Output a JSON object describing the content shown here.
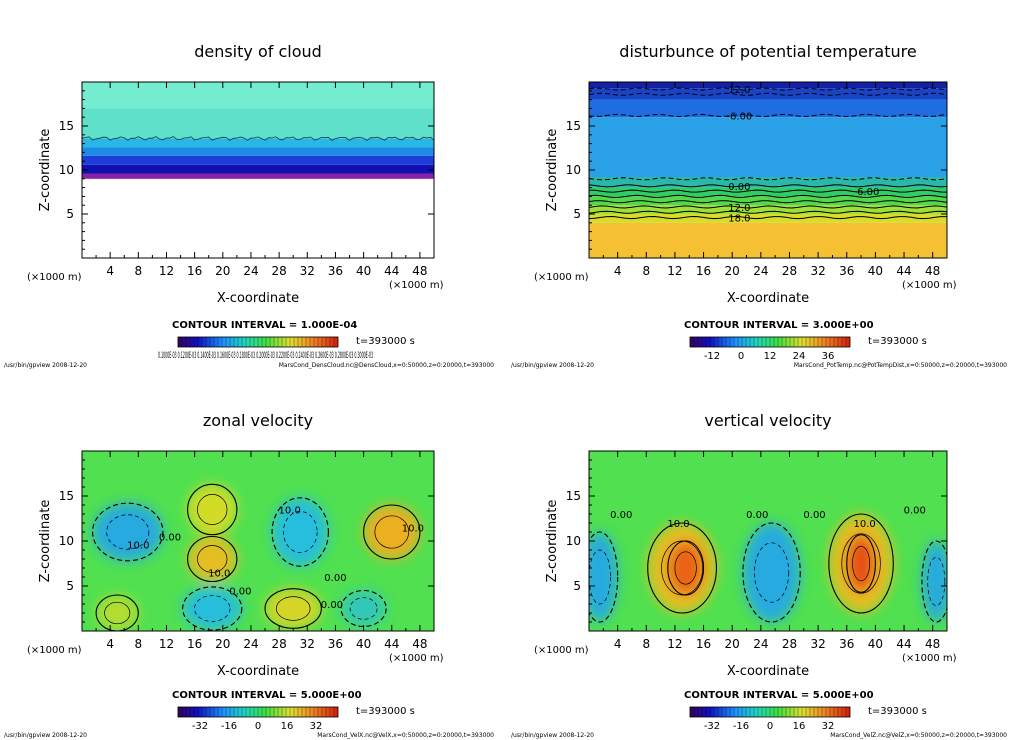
{
  "chart_data": [
    {
      "type": "heatmap",
      "title": "density of cloud",
      "xlabel": "X-coordinate",
      "ylabel": "Z-coordinate",
      "x_unit_label": "(×1000 m)",
      "y_unit_label": "(×1000 m)",
      "xlim": [
        0,
        50
      ],
      "ylim": [
        0,
        20
      ],
      "x_ticks": [
        "4",
        "8",
        "12",
        "16",
        "20",
        "24",
        "28",
        "32",
        "36",
        "40",
        "44",
        "48"
      ],
      "y_ticks": [
        "5",
        "10",
        "15"
      ],
      "contour_interval": "CONTOUR INTERVAL = 1.000E-04",
      "time": "t=393000 s",
      "colorbar_labels": [
        "0.1000E-03",
        "0.1200E-03",
        "0.1400E-03",
        "0.1600E-03",
        "0.1800E-03",
        "0.2000E-03",
        "0.2200E-03",
        "0.2400E-03",
        "0.2600E-03",
        "0.2800E-03",
        "0.3000E-03"
      ],
      "colorbar_label_text": "0.1000E-03 0.1200E-03 0.1400E-03 0.1600E-03 0.1800E-03 0.2000E-03 0.2200E-03 0.2400E-03 0.2600E-03 0.2800E-03 0.3000E-03",
      "footer_left": "/usr/bin/gpview   2008-12-20",
      "footer_right": "MarsCond_DensCloud.nc@DensCloud,x=0:50000,z=0:20000,t=393000",
      "layers": [
        {
          "z_from": 0,
          "z_to": 9,
          "color": "#ffffff"
        },
        {
          "z_from": 9,
          "z_to": 9.6,
          "color": "#8a1fa8"
        },
        {
          "z_from": 9.6,
          "z_to": 10.6,
          "color": "#1010b0"
        },
        {
          "z_from": 10.6,
          "z_to": 11.6,
          "color": "#1e3cd8"
        },
        {
          "z_from": 11.6,
          "z_to": 12.6,
          "color": "#1e8ae6"
        },
        {
          "z_from": 12.6,
          "z_to": 13.6,
          "color": "#28b8e6"
        },
        {
          "z_from": 13.6,
          "z_to": 17,
          "color": "#5fe0c8"
        },
        {
          "z_from": 17,
          "z_to": 20,
          "color": "#74ecd0"
        }
      ],
      "contours": [],
      "contour_labels": []
    },
    {
      "type": "heatmap",
      "title": "disturbunce of potential temperature",
      "xlabel": "X-coordinate",
      "ylabel": "Z-coordinate",
      "x_unit_label": "(×1000 m)",
      "y_unit_label": "(×1000 m)",
      "xlim": [
        0,
        50
      ],
      "ylim": [
        0,
        20
      ],
      "x_ticks": [
        "4",
        "8",
        "12",
        "16",
        "20",
        "24",
        "28",
        "32",
        "36",
        "40",
        "44",
        "48"
      ],
      "y_ticks": [
        "5",
        "10",
        "15"
      ],
      "contour_interval": "CONTOUR INTERVAL = 3.000E+00",
      "time": "t=393000 s",
      "colorbar_labels": [
        "-12",
        "0",
        "12",
        "24",
        "36"
      ],
      "colorbar_label_text": "",
      "footer_left": "/usr/bin/gpview   2008-12-20",
      "footer_right": "MarsCond_PotTemp.nc@PotTempDist,x=0:50000,z=0:20000,t=393000",
      "layers": [
        {
          "z_from": 0,
          "z_to": 4,
          "color": "#f5c032"
        },
        {
          "z_from": 4,
          "z_to": 5,
          "color": "#d8dc2a"
        },
        {
          "z_from": 5,
          "z_to": 6,
          "color": "#9ee03a"
        },
        {
          "z_from": 6,
          "z_to": 7,
          "color": "#52d84a"
        },
        {
          "z_from": 7,
          "z_to": 8,
          "color": "#30cc68"
        },
        {
          "z_from": 8,
          "z_to": 9.2,
          "color": "#2ab8a8"
        },
        {
          "z_from": 9.2,
          "z_to": 16,
          "color": "#2aa0e6"
        },
        {
          "z_from": 16,
          "z_to": 18,
          "color": "#1e6ee0"
        },
        {
          "z_from": 18,
          "z_to": 19.3,
          "color": "#1a44c8"
        },
        {
          "z_from": 19.3,
          "z_to": 20,
          "color": "#1420a8"
        }
      ],
      "contours": [
        {
          "z": 4.6,
          "dashed": false
        },
        {
          "z": 5.2,
          "dashed": false
        },
        {
          "z": 5.8,
          "dashed": false
        },
        {
          "z": 6.4,
          "dashed": false
        },
        {
          "z": 7.0,
          "dashed": false
        },
        {
          "z": 7.6,
          "dashed": false
        },
        {
          "z": 8.2,
          "dashed": false
        },
        {
          "z": 9.0,
          "dashed": true
        },
        {
          "z": 16.2,
          "dashed": true
        },
        {
          "z": 18.6,
          "dashed": true
        },
        {
          "z": 19.2,
          "dashed": true
        }
      ],
      "contour_labels": [
        {
          "text": "12.0",
          "x": 21,
          "z": 19.2
        },
        {
          "text": "-6.00",
          "x": 21,
          "z": 16.2
        },
        {
          "text": "0.00",
          "x": 21,
          "z": 8.2
        },
        {
          "text": "6.00",
          "x": 39,
          "z": 7.6
        },
        {
          "text": "12.0",
          "x": 21,
          "z": 5.8
        },
        {
          "text": "18.0",
          "x": 21,
          "z": 4.6
        }
      ]
    },
    {
      "type": "heatmap",
      "title": "zonal velocity",
      "xlabel": "X-coordinate",
      "ylabel": "Z-coordinate",
      "x_unit_label": "(×1000 m)",
      "y_unit_label": "(×1000 m)",
      "xlim": [
        0,
        50
      ],
      "ylim": [
        0,
        20
      ],
      "x_ticks": [
        "4",
        "8",
        "12",
        "16",
        "20",
        "24",
        "28",
        "32",
        "36",
        "40",
        "44",
        "48"
      ],
      "y_ticks": [
        "5",
        "10",
        "15"
      ],
      "contour_interval": "CONTOUR INTERVAL = 5.000E+00",
      "time": "t=393000 s",
      "colorbar_labels": [
        "-32",
        "-16",
        "0",
        "16",
        "32"
      ],
      "colorbar_label_text": "",
      "footer_left": "/usr/bin/gpview   2008-12-20",
      "footer_right": "MarsCond_VelX.nc@VelX,x=0:50000,z=0:20000,t=393000",
      "background": "#50e050",
      "blobs": [
        {
          "x": 6.5,
          "z": 11,
          "rx": 5.0,
          "rz": 3.2,
          "value": -10
        },
        {
          "x": 31,
          "z": 11,
          "rx": 4.0,
          "rz": 3.8,
          "value": -8
        },
        {
          "x": 18.5,
          "z": 2.5,
          "rx": 4.2,
          "rz": 2.4,
          "value": -8
        },
        {
          "x": 40,
          "z": 2.5,
          "rx": 3.2,
          "rz": 2.0,
          "value": -6
        },
        {
          "x": 18.5,
          "z": 13.5,
          "rx": 3.5,
          "rz": 2.8,
          "value": 8
        },
        {
          "x": 18.5,
          "z": 8,
          "rx": 3.5,
          "rz": 2.5,
          "value": 12
        },
        {
          "x": 44,
          "z": 11,
          "rx": 4.0,
          "rz": 3.0,
          "value": 14
        },
        {
          "x": 30,
          "z": 2.5,
          "rx": 4.0,
          "rz": 2.2,
          "value": 9
        },
        {
          "x": 5,
          "z": 2,
          "rx": 3.0,
          "rz": 2.0,
          "value": 6
        }
      ],
      "contour_labels": [
        {
          "text": "10.0",
          "x": 8,
          "z": 9.6
        },
        {
          "text": "0.00",
          "x": 12.5,
          "z": 10.5
        },
        {
          "text": "10.0",
          "x": 19.5,
          "z": 6.5
        },
        {
          "text": "10.0",
          "x": 29.5,
          "z": 13.5
        },
        {
          "text": "0.00",
          "x": 22.5,
          "z": 4.5
        },
        {
          "text": "0.00",
          "x": 36.0,
          "z": 6.0
        },
        {
          "text": "0.00",
          "x": 35.5,
          "z": 3.0
        },
        {
          "text": "10.0",
          "x": 47,
          "z": 11.5
        }
      ]
    },
    {
      "type": "heatmap",
      "title": "vertical velocity",
      "xlabel": "X-coordinate",
      "ylabel": "Z-coordinate",
      "x_unit_label": "(×1000 m)",
      "y_unit_label": "(×1000 m)",
      "xlim": [
        0,
        50
      ],
      "ylim": [
        0,
        20
      ],
      "x_ticks": [
        "4",
        "8",
        "12",
        "16",
        "20",
        "24",
        "28",
        "32",
        "36",
        "40",
        "44",
        "48"
      ],
      "y_ticks": [
        "5",
        "10",
        "15"
      ],
      "contour_interval": "CONTOUR INTERVAL = 5.000E+00",
      "time": "t=393000 s",
      "colorbar_labels": [
        "-32",
        "-16",
        "0",
        "16",
        "32"
      ],
      "colorbar_label_text": "",
      "footer_left": "/usr/bin/gpview   2008-12-20",
      "footer_right": "MarsCond_VelZ.nc@VelZ,x=0:50000,z=0:20000,t=393000",
      "background": "#50e050",
      "blobs": [
        {
          "x": 13,
          "z": 7,
          "rx": 4.8,
          "rz": 5.0,
          "value": 12
        },
        {
          "x": 13.5,
          "z": 7,
          "rx": 2.5,
          "rz": 3.0,
          "value": 22
        },
        {
          "x": 38,
          "z": 7.5,
          "rx": 4.5,
          "rz": 5.5,
          "value": 12
        },
        {
          "x": 38,
          "z": 7.5,
          "rx": 2.0,
          "rz": 3.2,
          "value": 24
        },
        {
          "x": 25.5,
          "z": 6.5,
          "rx": 4.0,
          "rz": 5.5,
          "value": -10
        },
        {
          "x": 1.5,
          "z": 6,
          "rx": 2.5,
          "rz": 5.0,
          "value": -10
        },
        {
          "x": 48.5,
          "z": 5.5,
          "rx": 2.0,
          "rz": 4.5,
          "value": -10
        }
      ],
      "contour_labels": [
        {
          "text": "0.00",
          "x": 4.5,
          "z": 13.0
        },
        {
          "text": "10.0",
          "x": 12.5,
          "z": 12.0
        },
        {
          "text": "0.00",
          "x": 23.5,
          "z": 13.0
        },
        {
          "text": "0.00",
          "x": 31.5,
          "z": 13.0
        },
        {
          "text": "10.0",
          "x": 38.5,
          "z": 12.0
        },
        {
          "text": "0.00",
          "x": 45.5,
          "z": 13.5
        }
      ]
    }
  ]
}
